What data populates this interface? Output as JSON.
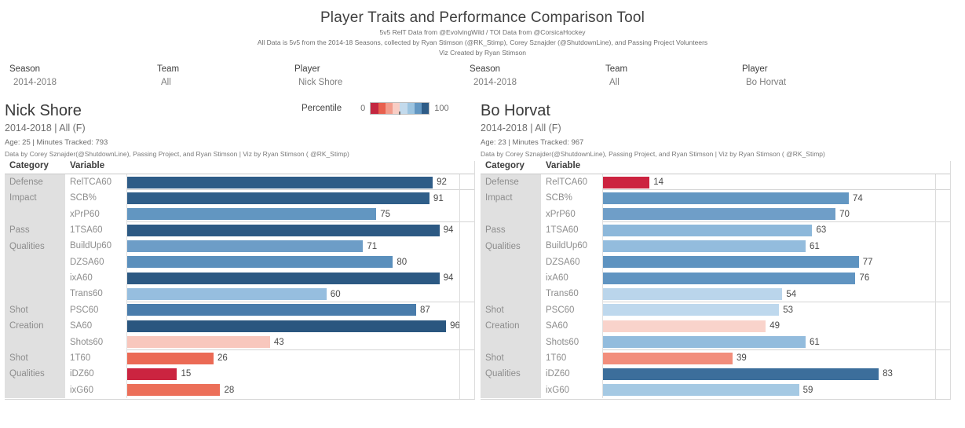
{
  "header": {
    "title": "Player Traits and Performance Comparison Tool",
    "subtitle1": "5v5 RelT Data from @EvolvingWild / TOI Data from @CorsicaHockey",
    "subtitle2": "All Data is 5v5 from the 2014-18 Seasons, collected by Ryan Stimson (@RK_Stimp), Corey Sznajder (@ShutdownLine), and Passing Project Volunteers",
    "subtitle3": "Viz Created by Ryan Stimson"
  },
  "filters": {
    "left": [
      {
        "label": "Season",
        "value": "2014-2018"
      },
      {
        "label": "Team",
        "value": "All"
      },
      {
        "label": "Player",
        "value": "Nick Shore"
      }
    ],
    "right": [
      {
        "label": "Season",
        "value": "2014-2018"
      },
      {
        "label": "Team",
        "value": "All"
      },
      {
        "label": "Player",
        "value": "Bo Horvat"
      }
    ]
  },
  "legend": {
    "label": "Percentile",
    "min": "0",
    "max": "100",
    "colors": [
      "#c32740",
      "#e8604e",
      "#f29c8c",
      "#f8cdc4",
      "#c3daec",
      "#9cc4e0",
      "#6397c2",
      "#2e5c87"
    ]
  },
  "players": [
    {
      "name": "Nick Shore",
      "scope": "2014-2018 | All (F)",
      "meta": "Age: 25 | Minutes Tracked: 793",
      "credit": "Data by Corey Sznajder(@ShutdownLine), Passing Project, and Ryan Stimson | Viz by Ryan Stimson ( @RK_Stimp)"
    },
    {
      "name": "Bo Horvat",
      "scope": "2014-2018 | All (F)",
      "meta": "Age: 23 | Minutes Tracked: 967",
      "credit": "Data by Corey Sznajder(@ShutdownLine), Passing Project, and Ryan Stimson | Viz by Ryan Stimson ( @RK_Stimp)"
    }
  ],
  "chart_data": [
    {
      "type": "bar",
      "orientation": "horizontal",
      "title": "Nick Shore percentile traits",
      "column_headers": [
        "Category",
        "Variable"
      ],
      "xlim": [
        0,
        100
      ],
      "legend_label": "Percentile",
      "groups": [
        {
          "category": "Defense",
          "rows": [
            {
              "variable": "RelTCA60",
              "value": 92,
              "color": "#2e5c87"
            }
          ]
        },
        {
          "category": "Impact",
          "rows": [
            {
              "variable": "SCB%",
              "value": 91,
              "color": "#2f5e89"
            },
            {
              "variable": "xPrP60",
              "value": 75,
              "color": "#6296c1"
            }
          ]
        },
        {
          "category": "Pass Qualities",
          "rows": [
            {
              "variable": "1TSA60",
              "value": 94,
              "color": "#2c5983"
            },
            {
              "variable": "BuildUp60",
              "value": 71,
              "color": "#6d9dc7"
            },
            {
              "variable": "DZSA60",
              "value": 80,
              "color": "#5a8fbc"
            },
            {
              "variable": "ixA60",
              "value": 94,
              "color": "#2c5983"
            },
            {
              "variable": "Trans60",
              "value": 60,
              "color": "#96bedf"
            }
          ]
        },
        {
          "category": "Shot Creation",
          "rows": [
            {
              "variable": "PSC60",
              "value": 87,
              "color": "#497cab"
            },
            {
              "variable": "SA60",
              "value": 96,
              "color": "#2a567f"
            },
            {
              "variable": "Shots60",
              "value": 43,
              "color": "#f8c7bd"
            }
          ]
        },
        {
          "category": "Shot Qualities",
          "rows": [
            {
              "variable": "1T60",
              "value": 26,
              "color": "#eb6a55"
            },
            {
              "variable": "iDZ60",
              "value": 15,
              "color": "#cb2440"
            },
            {
              "variable": "ixG60",
              "value": 28,
              "color": "#ec6f59"
            }
          ]
        }
      ]
    },
    {
      "type": "bar",
      "orientation": "horizontal",
      "title": "Bo Horvat percentile traits",
      "column_headers": [
        "Category",
        "Variable"
      ],
      "xlim": [
        0,
        100
      ],
      "legend_label": "Percentile",
      "groups": [
        {
          "category": "Defense",
          "rows": [
            {
              "variable": "RelTCA60",
              "value": 14,
              "color": "#cc2340"
            }
          ]
        },
        {
          "category": "Impact",
          "rows": [
            {
              "variable": "SCB%",
              "value": 74,
              "color": "#6397c2"
            },
            {
              "variable": "xPrP60",
              "value": 70,
              "color": "#6f9ec8"
            }
          ]
        },
        {
          "category": "Pass Qualities",
          "rows": [
            {
              "variable": "1TSA60",
              "value": 63,
              "color": "#8db8da"
            },
            {
              "variable": "BuildUp60",
              "value": 61,
              "color": "#93bcdd"
            },
            {
              "variable": "DZSA60",
              "value": 77,
              "color": "#5e93c0"
            },
            {
              "variable": "ixA60",
              "value": 76,
              "color": "#6094c1"
            },
            {
              "variable": "Trans60",
              "value": 54,
              "color": "#bad5eb"
            }
          ]
        },
        {
          "category": "Shot Creation",
          "rows": [
            {
              "variable": "PSC60",
              "value": 53,
              "color": "#bed8ed"
            },
            {
              "variable": "SA60",
              "value": 49,
              "color": "#f9d3cb"
            },
            {
              "variable": "Shots60",
              "value": 61,
              "color": "#93bcdd"
            }
          ]
        },
        {
          "category": "Shot Qualities",
          "rows": [
            {
              "variable": "1T60",
              "value": 39,
              "color": "#f28e7c"
            },
            {
              "variable": "iDZ60",
              "value": 83,
              "color": "#3c6e9b"
            },
            {
              "variable": "ixG60",
              "value": 59,
              "color": "#a5c9e3"
            }
          ]
        }
      ]
    }
  ]
}
